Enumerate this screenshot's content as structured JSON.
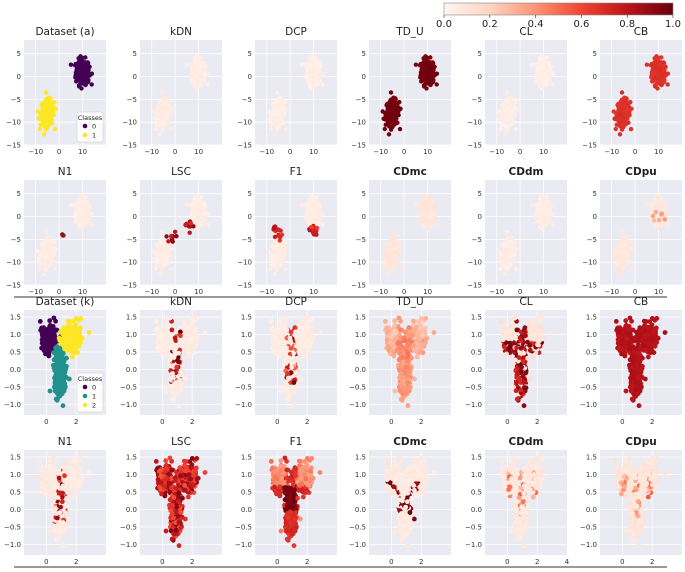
{
  "chart_data": {
    "type": "scatter",
    "colormap": "Reds",
    "colorbar": {
      "ticks": [
        "0.0",
        "0.2",
        "0.4",
        "0.6",
        "0.8",
        "1.0"
      ],
      "range": [
        0,
        1
      ],
      "low_color": "#fff5f0",
      "high_color": "#67000d"
    },
    "sections": [
      {
        "name": "Dataset (a)",
        "xlim": [
          -15,
          20
        ],
        "ylim": [
          -15,
          8
        ],
        "xticks": [
          -10,
          0,
          10
        ],
        "xtick_labels": [
          "−10",
          "0",
          "10"
        ],
        "yticks": [
          5,
          0,
          -5,
          -10,
          -15
        ],
        "ytick_labels": [
          "5",
          "0",
          "−5",
          "−10",
          "−15"
        ],
        "class_colors": [
          "#440154",
          "#fde725"
        ],
        "legend": {
          "title": "Classes",
          "labels": [
            "0",
            "1"
          ]
        },
        "clusters": [
          {
            "cx": 10,
            "cy": 1,
            "sx": 2.6,
            "sy": 2.5,
            "cls": 0,
            "n": 230
          },
          {
            "cx": -5,
            "cy": -8,
            "sx": 2.6,
            "sy": 2.5,
            "cls": 1,
            "n": 230
          }
        ],
        "panels": [
          {
            "title": "Dataset (a)",
            "kind": "dataset",
            "bold": false
          },
          {
            "title": "kDN",
            "kind": "uniform",
            "level": 0.05,
            "bold": false
          },
          {
            "title": "DCP",
            "kind": "uniform",
            "level": 0.04,
            "bold": false
          },
          {
            "title": "TD_U",
            "kind": "uniform",
            "level": 0.97,
            "bold": false
          },
          {
            "title": "CL",
            "kind": "uniform",
            "level": 0.04,
            "bold": false
          },
          {
            "title": "CB",
            "kind": "uniform",
            "level": 0.68,
            "bold": false
          },
          {
            "title": "N1",
            "kind": "uniform",
            "level": 0.05,
            "bold": false,
            "hot": [
              {
                "x": 1.5,
                "y": -4,
                "n": 3,
                "r": 0.8,
                "lv": 0.9
              }
            ]
          },
          {
            "title": "LSC",
            "kind": "uniform",
            "level": 0.05,
            "bold": false,
            "hot": [
              {
                "x": -1,
                "y": -4,
                "n": 10,
                "r": 2,
                "lv": 0.85
              },
              {
                "x": 6,
                "y": -2,
                "n": 10,
                "r": 2,
                "lv": 0.8
              }
            ]
          },
          {
            "title": "F1",
            "kind": "uniform",
            "level": 0.05,
            "bold": false,
            "hot": [
              {
                "x": -5,
                "y": -3.5,
                "n": 18,
                "r": 2.2,
                "lv": 0.72
              },
              {
                "x": 10,
                "y": -3,
                "n": 14,
                "r": 2,
                "lv": 0.72
              }
            ]
          },
          {
            "title": "CDmc",
            "kind": "uniform",
            "level": 0.09,
            "bold": true
          },
          {
            "title": "CDdm",
            "kind": "uniform",
            "level": 0.05,
            "bold": true
          },
          {
            "title": "CDpu",
            "kind": "uniform",
            "level": 0.08,
            "bold": true,
            "hot": [
              {
                "x": 10,
                "y": 0,
                "n": 8,
                "r": 3,
                "lv": 0.35
              }
            ]
          }
        ]
      },
      {
        "name": "Dataset (k)",
        "xlim": [
          -1.5,
          4
        ],
        "ylim": [
          -1.3,
          1.7
        ],
        "xticks": [
          0,
          2
        ],
        "xtick_labels": [
          "0",
          "2"
        ],
        "yticks": [
          1.5,
          1.0,
          0.5,
          0.0,
          -0.5,
          -1.0
        ],
        "ytick_labels": [
          "1.5",
          "1.0",
          "0.5",
          "0.0",
          "−0.5",
          "−1.0"
        ],
        "class_colors": [
          "#440154",
          "#21918c",
          "#fde725"
        ],
        "legend": {
          "title": "Classes",
          "labels": [
            "0",
            "1",
            "2"
          ]
        },
        "clusters": [
          {
            "cx": 0.2,
            "cy": 0.9,
            "sx": 0.55,
            "sy": 0.35,
            "cls": 0,
            "n": 220
          },
          {
            "cx": 1.7,
            "cy": 0.9,
            "sx": 0.55,
            "sy": 0.35,
            "cls": 2,
            "n": 220
          },
          {
            "cx": 0.9,
            "cy": -0.1,
            "sx": 0.35,
            "sy": 0.55,
            "cls": 1,
            "n": 260
          }
        ],
        "panels": [
          {
            "title": "Dataset (k)",
            "kind": "dataset",
            "bold": false
          },
          {
            "title": "kDN",
            "kind": "spine",
            "level": 0.03,
            "bold": false,
            "extra_xtick": false
          },
          {
            "title": "DCP",
            "kind": "spine",
            "level": 0.03,
            "bold": false
          },
          {
            "title": "TD_U",
            "kind": "bands",
            "level": 0.3,
            "bold": false
          },
          {
            "title": "CL",
            "kind": "cross",
            "level": 0.06,
            "bold": false
          },
          {
            "title": "CB",
            "kind": "uniform",
            "level": 0.82,
            "bold": false
          },
          {
            "title": "N1",
            "kind": "spine",
            "level": 0.04,
            "bold": false
          },
          {
            "title": "LSC",
            "kind": "uniform",
            "level": 0.75,
            "bold": false,
            "varied": true
          },
          {
            "title": "F1",
            "kind": "grid",
            "level": 0.45,
            "bold": false
          },
          {
            "title": "CDmc",
            "kind": "arms",
            "level": 0.04,
            "bold": true
          },
          {
            "title": "CDdm",
            "kind": "mshape",
            "level": 0.05,
            "bold": true,
            "extra_xtick": true
          },
          {
            "title": "CDpu",
            "kind": "mshape",
            "level": 0.07,
            "bold": true
          }
        ]
      }
    ]
  }
}
